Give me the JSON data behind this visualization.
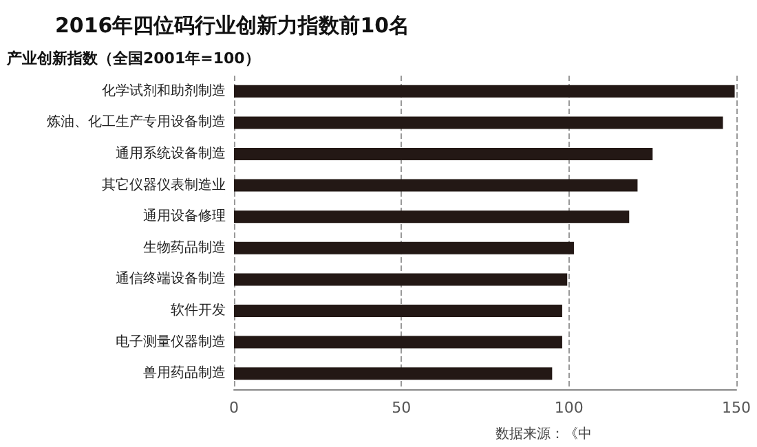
{
  "chart_data": {
    "type": "bar",
    "orientation": "horizontal",
    "title": "2016年四位码行业创新力指数前10名",
    "subtitle": "产业创新指数（全国2001年=100）",
    "categories": [
      "化学试剂和助剂制造",
      "炼油、化工生产专用设备制造",
      "通用系统设备制造",
      "其它仪器仪表制造业",
      "通用设备修理",
      "生物药品制造",
      "通信终端设备制造",
      "软件开发",
      "电子测量仪器制造",
      "兽用药品制造"
    ],
    "values": [
      149.5,
      146,
      125,
      120.5,
      118,
      101.5,
      99.5,
      98,
      98,
      95
    ],
    "color": "#231815",
    "xlim": [
      0,
      150
    ],
    "xticks": [
      0,
      50,
      100,
      150
    ],
    "grid": "x",
    "annotations": [
      "数据来源：《中"
    ]
  }
}
